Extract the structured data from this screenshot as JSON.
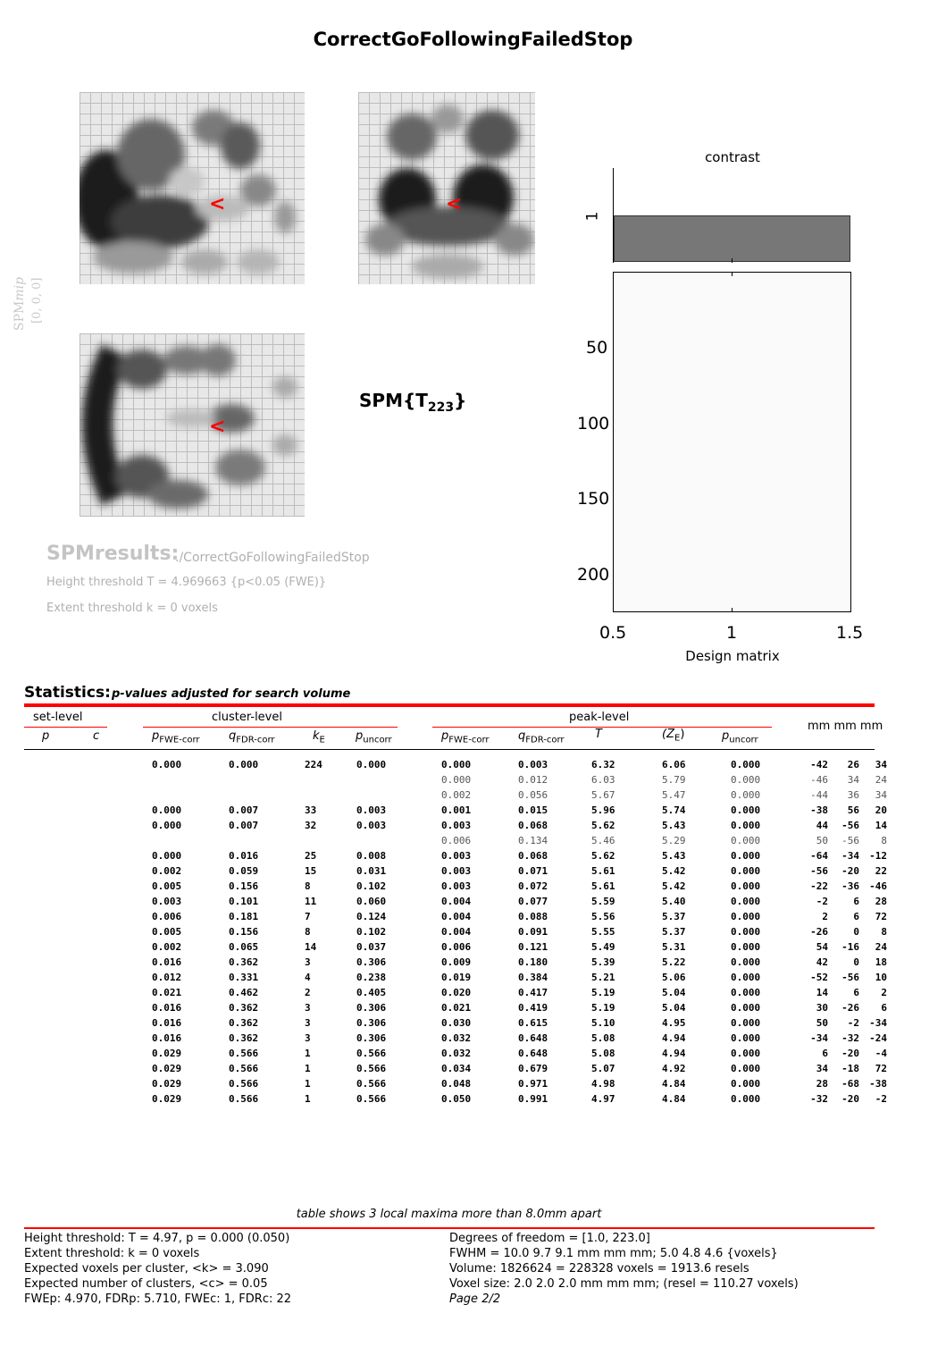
{
  "title": "CorrectGoFollowingFailedStop",
  "mip": {
    "label": "SPMmip",
    "label_prefix": "SPM",
    "label_suffix": "mip",
    "coords": "[0, 0, 0]",
    "marker": "<"
  },
  "stat_label": {
    "main": "SPM{T",
    "sub": "223",
    "close": "}"
  },
  "results": {
    "label": "SPMresults:",
    "path": "./CorrectGoFollowingFailedStop",
    "height_threshold": "Height threshold T = 4.969663  {p<0.05 (FWE)}",
    "extent_threshold": "Extent threshold k = 0 voxels"
  },
  "contrast": {
    "title": "contrast",
    "tick": "1",
    "bar_value": 1
  },
  "design_matrix": {
    "xlabel": "Design matrix",
    "yticks": [
      "50",
      "100",
      "150",
      "200"
    ],
    "xticks": [
      "0.5",
      "1",
      "1.5"
    ]
  },
  "statistics": {
    "heading": "Statistics:",
    "subheading": "p-values adjusted for search volume",
    "groups": {
      "set": "set-level",
      "cluster": "cluster-level",
      "peak": "peak-level",
      "mm": "mm mm mm"
    },
    "columns": {
      "set_p": "p",
      "set_c": "c",
      "c_pfwe": "pFWE-corr",
      "c_pfwe_main": "p",
      "c_pfwe_sub": "FWE-corr",
      "c_qfdr_main": "q",
      "c_qfdr_sub": "FDR-corr",
      "c_ke_main": "k",
      "c_ke_sub": "E",
      "c_punc_main": "p",
      "c_punc_sub": "uncorr",
      "p_pfwe_main": "p",
      "p_pfwe_sub": "FWE-corr",
      "p_qfdr_main": "q",
      "p_qfdr_sub": "FDR-corr",
      "p_t": "T",
      "p_ze_main": "(Z",
      "p_ze_sub": "E",
      "p_ze_close": ")",
      "p_punc_main": "p",
      "p_punc_sub": "uncorr"
    },
    "rows": [
      {
        "c": [
          "0.000",
          "0.000",
          "224",
          "0.000"
        ],
        "p": [
          "0.000",
          "0.003",
          "6.32",
          "6.06",
          "0.000"
        ],
        "xyz": [
          "-42",
          "26",
          "34"
        ],
        "sub": false
      },
      {
        "c": [
          "",
          "",
          "",
          ""
        ],
        "p": [
          "0.000",
          "0.012",
          "6.03",
          "5.79",
          "0.000"
        ],
        "xyz": [
          "-46",
          "34",
          "24"
        ],
        "sub": true
      },
      {
        "c": [
          "",
          "",
          "",
          ""
        ],
        "p": [
          "0.002",
          "0.056",
          "5.67",
          "5.47",
          "0.000"
        ],
        "xyz": [
          "-44",
          "36",
          "34"
        ],
        "sub": true
      },
      {
        "c": [
          "0.000",
          "0.007",
          "33",
          "0.003"
        ],
        "p": [
          "0.001",
          "0.015",
          "5.96",
          "5.74",
          "0.000"
        ],
        "xyz": [
          "-38",
          "56",
          "20"
        ],
        "sub": false
      },
      {
        "c": [
          "0.000",
          "0.007",
          "32",
          "0.003"
        ],
        "p": [
          "0.003",
          "0.068",
          "5.62",
          "5.43",
          "0.000"
        ],
        "xyz": [
          "44",
          "-56",
          "14"
        ],
        "sub": false
      },
      {
        "c": [
          "",
          "",
          "",
          ""
        ],
        "p": [
          "0.006",
          "0.134",
          "5.46",
          "5.29",
          "0.000"
        ],
        "xyz": [
          "50",
          "-56",
          "8"
        ],
        "sub": true
      },
      {
        "c": [
          "0.000",
          "0.016",
          "25",
          "0.008"
        ],
        "p": [
          "0.003",
          "0.068",
          "5.62",
          "5.43",
          "0.000"
        ],
        "xyz": [
          "-64",
          "-34",
          "-12"
        ],
        "sub": false
      },
      {
        "c": [
          "0.002",
          "0.059",
          "15",
          "0.031"
        ],
        "p": [
          "0.003",
          "0.071",
          "5.61",
          "5.42",
          "0.000"
        ],
        "xyz": [
          "-56",
          "-20",
          "22"
        ],
        "sub": false
      },
      {
        "c": [
          "0.005",
          "0.156",
          "8",
          "0.102"
        ],
        "p": [
          "0.003",
          "0.072",
          "5.61",
          "5.42",
          "0.000"
        ],
        "xyz": [
          "-22",
          "-36",
          "-46"
        ],
        "sub": false
      },
      {
        "c": [
          "0.003",
          "0.101",
          "11",
          "0.060"
        ],
        "p": [
          "0.004",
          "0.077",
          "5.59",
          "5.40",
          "0.000"
        ],
        "xyz": [
          "-2",
          "6",
          "28"
        ],
        "sub": false
      },
      {
        "c": [
          "0.006",
          "0.181",
          "7",
          "0.124"
        ],
        "p": [
          "0.004",
          "0.088",
          "5.56",
          "5.37",
          "0.000"
        ],
        "xyz": [
          "2",
          "6",
          "72"
        ],
        "sub": false
      },
      {
        "c": [
          "0.005",
          "0.156",
          "8",
          "0.102"
        ],
        "p": [
          "0.004",
          "0.091",
          "5.55",
          "5.37",
          "0.000"
        ],
        "xyz": [
          "-26",
          "0",
          "8"
        ],
        "sub": false
      },
      {
        "c": [
          "0.002",
          "0.065",
          "14",
          "0.037"
        ],
        "p": [
          "0.006",
          "0.121",
          "5.49",
          "5.31",
          "0.000"
        ],
        "xyz": [
          "54",
          "-16",
          "24"
        ],
        "sub": false
      },
      {
        "c": [
          "0.016",
          "0.362",
          "3",
          "0.306"
        ],
        "p": [
          "0.009",
          "0.180",
          "5.39",
          "5.22",
          "0.000"
        ],
        "xyz": [
          "42",
          "0",
          "18"
        ],
        "sub": false
      },
      {
        "c": [
          "0.012",
          "0.331",
          "4",
          "0.238"
        ],
        "p": [
          "0.019",
          "0.384",
          "5.21",
          "5.06",
          "0.000"
        ],
        "xyz": [
          "-52",
          "-56",
          "10"
        ],
        "sub": false
      },
      {
        "c": [
          "0.021",
          "0.462",
          "2",
          "0.405"
        ],
        "p": [
          "0.020",
          "0.417",
          "5.19",
          "5.04",
          "0.000"
        ],
        "xyz": [
          "14",
          "6",
          "2"
        ],
        "sub": false
      },
      {
        "c": [
          "0.016",
          "0.362",
          "3",
          "0.306"
        ],
        "p": [
          "0.021",
          "0.419",
          "5.19",
          "5.04",
          "0.000"
        ],
        "xyz": [
          "30",
          "-26",
          "6"
        ],
        "sub": false
      },
      {
        "c": [
          "0.016",
          "0.362",
          "3",
          "0.306"
        ],
        "p": [
          "0.030",
          "0.615",
          "5.10",
          "4.95",
          "0.000"
        ],
        "xyz": [
          "50",
          "-2",
          "-34"
        ],
        "sub": false
      },
      {
        "c": [
          "0.016",
          "0.362",
          "3",
          "0.306"
        ],
        "p": [
          "0.032",
          "0.648",
          "5.08",
          "4.94",
          "0.000"
        ],
        "xyz": [
          "-34",
          "-32",
          "-24"
        ],
        "sub": false
      },
      {
        "c": [
          "0.029",
          "0.566",
          "1",
          "0.566"
        ],
        "p": [
          "0.032",
          "0.648",
          "5.08",
          "4.94",
          "0.000"
        ],
        "xyz": [
          "6",
          "-20",
          "-4"
        ],
        "sub": false
      },
      {
        "c": [
          "0.029",
          "0.566",
          "1",
          "0.566"
        ],
        "p": [
          "0.034",
          "0.679",
          "5.07",
          "4.92",
          "0.000"
        ],
        "xyz": [
          "34",
          "-18",
          "72"
        ],
        "sub": false
      },
      {
        "c": [
          "0.029",
          "0.566",
          "1",
          "0.566"
        ],
        "p": [
          "0.048",
          "0.971",
          "4.98",
          "4.84",
          "0.000"
        ],
        "xyz": [
          "28",
          "-68",
          "-38"
        ],
        "sub": false
      },
      {
        "c": [
          "0.029",
          "0.566",
          "1",
          "0.566"
        ],
        "p": [
          "0.050",
          "0.991",
          "4.97",
          "4.84",
          "0.000"
        ],
        "xyz": [
          "-32",
          "-20",
          "-2"
        ],
        "sub": false
      }
    ]
  },
  "footer": {
    "table_note": "table shows 3 local maxima more than 8.0mm apart",
    "left": [
      "Height threshold: T = 4.97, p = 0.000 (0.050)",
      "Extent threshold: k = 0 voxels",
      "Expected voxels per cluster, <k> = 3.090",
      "Expected number of clusters, <c> = 0.05",
      "FWEp: 4.970, FDRp: 5.710, FWEc: 1, FDRc: 22"
    ],
    "right": [
      "Degrees of freedom = [1.0, 223.0]",
      "FWHM = 10.0 9.7 9.1 mm mm mm; 5.0 4.8 4.6 {voxels}",
      "Volume: 1826624 = 228328 voxels = 1913.6 resels",
      "Voxel size: 2.0 2.0 2.0 mm mm mm; (resel = 110.27 voxels)",
      "Page 2/2"
    ]
  },
  "colors": {
    "accent_red": "#ff0000",
    "contrast_bar": "#777777",
    "glass_bg": "#e8e8e8"
  }
}
